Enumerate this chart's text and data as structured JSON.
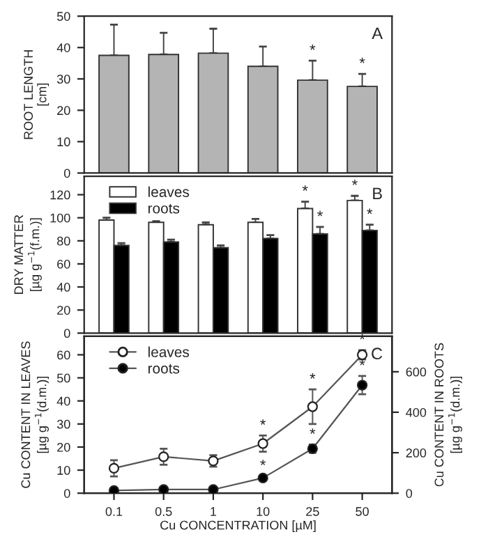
{
  "chart_data": [
    {
      "type": "bar",
      "categories": [
        "0.1",
        "0.5",
        "1",
        "10",
        "25",
        "50"
      ],
      "ylabel": "ROOT LENGTH\n[cm]",
      "ylim": [
        0,
        50
      ],
      "yticks": [
        0,
        10,
        20,
        30,
        40,
        50
      ],
      "tick_labels": "y",
      "grid": false,
      "annotations": [
        "A"
      ],
      "series": [
        {
          "color": "#b4b4b4",
          "values": [
            37.5,
            37.8,
            38.2,
            34,
            29.6,
            27.6
          ],
          "errors": [
            [
              37.5,
              47.3
            ],
            [
              37.8,
              44.7
            ],
            [
              38.2,
              46
            ],
            [
              34,
              40.3
            ],
            [
              29.6,
              35.8
            ],
            [
              27.6,
              31.6
            ]
          ],
          "value_labels": [
            null,
            null,
            null,
            null,
            "*",
            "*"
          ]
        }
      ]
    },
    {
      "type": "bar",
      "categories": [
        "0.1",
        "0.5",
        "1",
        "10",
        "25",
        "50"
      ],
      "ylabel": "DRY MATTER\n[µg g$^{−1}$(f.m.)]",
      "ylim": [
        0,
        136
      ],
      "yticks": [
        0,
        20,
        40,
        60,
        80,
        100,
        120
      ],
      "tick_labels": "y",
      "grid": false,
      "legend": "top left",
      "annotations": [
        "B"
      ],
      "series": [
        {
          "name": "leaves",
          "color": "#ffffff",
          "values": [
            98,
            96,
            94,
            96,
            108,
            115
          ],
          "errors": [
            [
              98,
              100
            ],
            [
              96,
              97
            ],
            [
              94,
              96
            ],
            [
              96,
              99
            ],
            [
              108,
              114
            ],
            [
              115,
              119
            ]
          ],
          "value_labels": [
            null,
            null,
            null,
            null,
            "*",
            "*"
          ]
        },
        {
          "name": "roots",
          "color": "#000000",
          "values": [
            76,
            79,
            74,
            82,
            86,
            89
          ],
          "errors": [
            [
              76,
              78
            ],
            [
              79,
              81
            ],
            [
              74,
              76
            ],
            [
              82,
              85
            ],
            [
              86,
              92
            ],
            [
              89,
              94
            ]
          ],
          "value_labels": [
            null,
            null,
            null,
            null,
            "*",
            "*"
          ]
        }
      ]
    },
    {
      "type": "line",
      "categories": [
        "0.1",
        "0.5",
        "1",
        "10",
        "25",
        "50"
      ],
      "xlabel": "Cu CONCENTRATION [µM]",
      "ylabel": "Cu CONTENT IN LEAVES\n[µg g$^{−1}$(d.m.)]",
      "y2label": "Cu CONTENT IN ROOTS\n[µg g$^{−1}$(d.m.)]",
      "ylim": [
        0,
        68
      ],
      "yticks": [
        0,
        10,
        20,
        30,
        40,
        50,
        60
      ],
      "y2lim": [
        0,
        775
      ],
      "y2ticks": [
        0,
        200,
        400,
        600
      ],
      "grid": false,
      "legend": "top left",
      "marker": "circle",
      "line_style": "solid",
      "annotations": [
        "C"
      ],
      "series": [
        {
          "name": "leaves",
          "color": "#ffffff",
          "values": [
            10.8,
            15.8,
            14,
            21.5,
            37.5,
            60
          ],
          "errors": [
            3.5,
            3.5,
            2.5,
            3.5,
            7.5,
            2
          ],
          "value_labels": [
            null,
            null,
            null,
            "*",
            "*",
            "*"
          ]
        },
        {
          "name": "roots",
          "color": "#000000",
          "axis": "y2",
          "values": [
            13,
            18,
            18,
            75,
            220,
            534
          ],
          "errors": [
            5,
            5,
            5,
            10,
            20,
            45
          ],
          "value_labels": [
            null,
            null,
            null,
            "*",
            "*",
            "*"
          ]
        }
      ]
    }
  ]
}
